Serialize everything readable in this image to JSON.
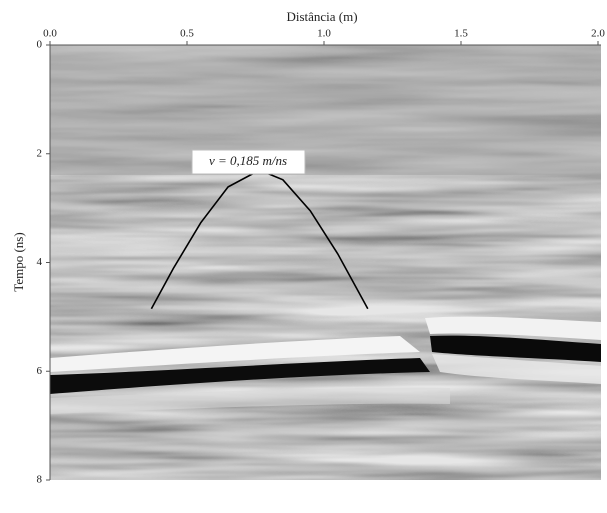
{
  "chart_data": {
    "type": "line",
    "title": "Distância (m)",
    "y_label": "Tempo (ns)",
    "annotation": "v = 0,185 m/ns",
    "x": [
      0.37,
      0.45,
      0.55,
      0.65,
      0.765,
      0.85,
      0.95,
      1.05,
      1.16
    ],
    "series": [
      {
        "color": "#000000",
        "values": [
          4.85,
          4.11,
          3.27,
          2.61,
          2.3,
          2.48,
          3.05,
          3.84,
          4.85
        ]
      }
    ],
    "xlim": [
      0,
      2
    ],
    "ylim": [
      0,
      8
    ],
    "y_inverted": true,
    "xticks": [
      {
        "value": 0,
        "label": "0.0"
      },
      {
        "value": 0.5,
        "label": "0.5"
      },
      {
        "value": 1,
        "label": "1.0"
      },
      {
        "value": 1.5,
        "label": "1.5"
      },
      {
        "value": 2,
        "label": "2.0"
      }
    ],
    "yticks": [
      0,
      2,
      4,
      6,
      8
    ]
  }
}
